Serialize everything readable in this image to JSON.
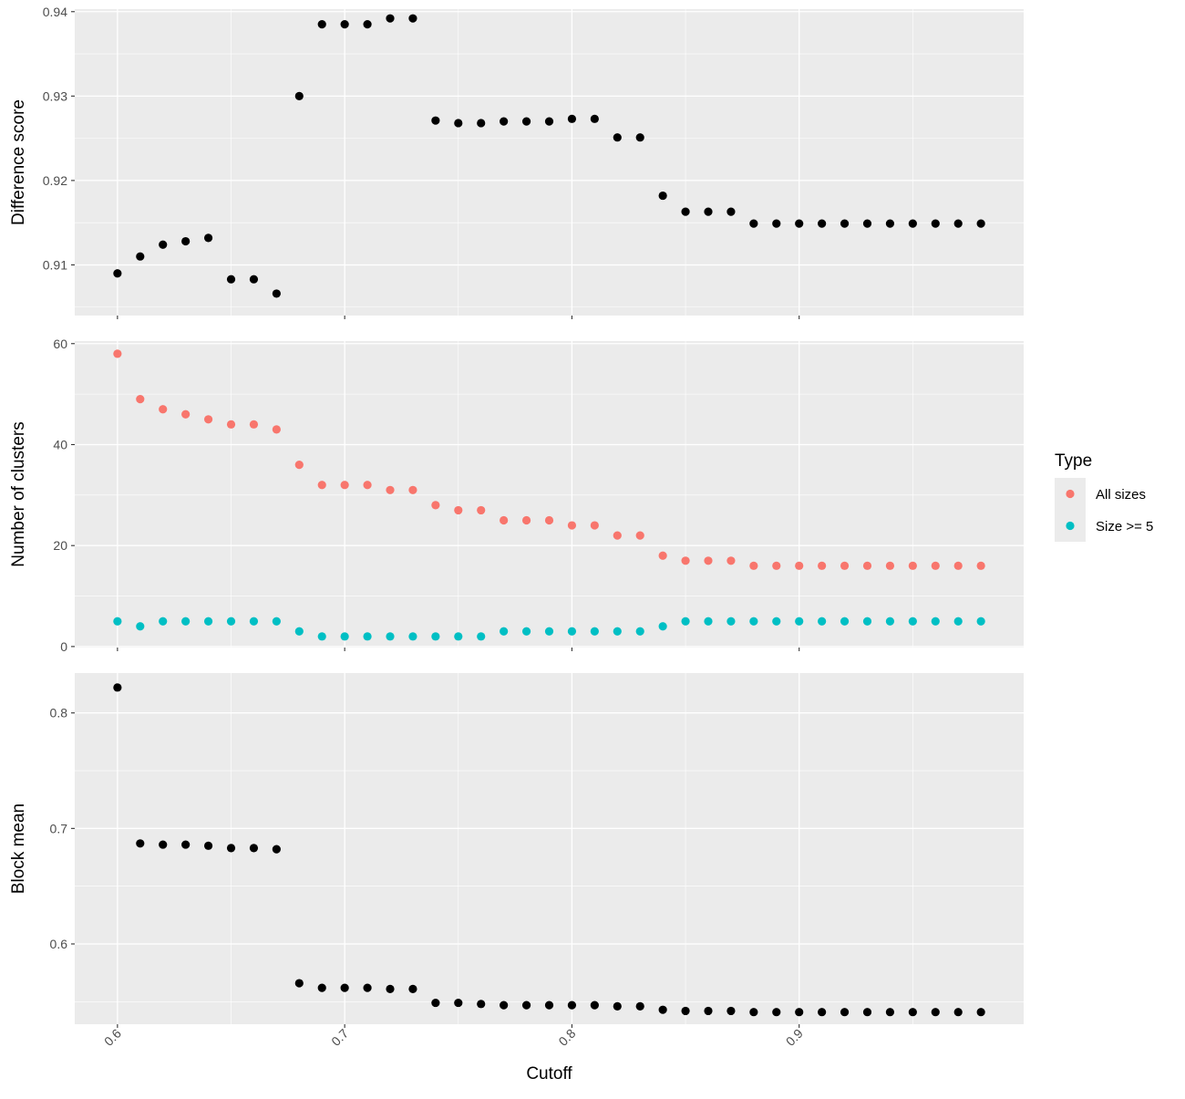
{
  "chart_data": [
    {
      "type": "scatter",
      "panel": "top",
      "ylabel": "Difference score",
      "ylim": [
        0.904,
        0.9403
      ],
      "yticks": [
        0.91,
        0.92,
        0.93,
        0.94
      ],
      "yticklabels": [
        "0.91",
        "0.92",
        "0.93",
        "0.94"
      ],
      "series": [
        {
          "color": "#000000",
          "x": [
            0.6,
            0.61,
            0.62,
            0.63,
            0.64,
            0.65,
            0.66,
            0.67,
            0.68,
            0.69,
            0.7,
            0.71,
            0.72,
            0.73,
            0.74,
            0.75,
            0.76,
            0.77,
            0.78,
            0.79,
            0.8,
            0.81,
            0.82,
            0.83,
            0.84,
            0.85,
            0.86,
            0.87,
            0.88,
            0.89,
            0.9,
            0.91,
            0.92,
            0.93,
            0.94,
            0.95,
            0.96,
            0.97,
            0.98
          ],
          "y": [
            0.909,
            0.911,
            0.9124,
            0.9128,
            0.9132,
            0.9083,
            0.9083,
            0.9066,
            0.93,
            0.9385,
            0.9385,
            0.9385,
            0.9392,
            0.9392,
            0.9271,
            0.9268,
            0.9268,
            0.927,
            0.927,
            0.927,
            0.9273,
            0.9273,
            0.9251,
            0.9251,
            0.9182,
            0.9163,
            0.9163,
            0.9163,
            0.9149,
            0.9149,
            0.9149,
            0.9149,
            0.9149,
            0.9149,
            0.9149,
            0.9149,
            0.9149,
            0.9149,
            0.9149
          ]
        }
      ]
    },
    {
      "type": "scatter",
      "panel": "middle",
      "ylabel": "Number of clusters",
      "ylim": [
        -0.2,
        60.5
      ],
      "yticks": [
        0,
        20,
        40,
        60
      ],
      "yticklabels": [
        "0",
        "20",
        "40",
        "60"
      ],
      "legend": {
        "title": "Type",
        "placement": "right"
      },
      "series": [
        {
          "name": "All sizes",
          "color": "#F8766D",
          "x": [
            0.6,
            0.61,
            0.62,
            0.63,
            0.64,
            0.65,
            0.66,
            0.67,
            0.68,
            0.69,
            0.7,
            0.71,
            0.72,
            0.73,
            0.74,
            0.75,
            0.76,
            0.77,
            0.78,
            0.79,
            0.8,
            0.81,
            0.82,
            0.83,
            0.84,
            0.85,
            0.86,
            0.87,
            0.88,
            0.89,
            0.9,
            0.91,
            0.92,
            0.93,
            0.94,
            0.95,
            0.96,
            0.97,
            0.98
          ],
          "y": [
            58,
            49,
            47,
            46,
            45,
            44,
            44,
            43,
            36,
            32,
            32,
            32,
            31,
            31,
            28,
            27,
            27,
            25,
            25,
            25,
            24,
            24,
            22,
            22,
            18,
            17,
            17,
            17,
            16,
            16,
            16,
            16,
            16,
            16,
            16,
            16,
            16,
            16,
            16
          ]
        },
        {
          "name": "Size >= 5",
          "color": "#00BFC4",
          "x": [
            0.6,
            0.61,
            0.62,
            0.63,
            0.64,
            0.65,
            0.66,
            0.67,
            0.68,
            0.69,
            0.7,
            0.71,
            0.72,
            0.73,
            0.74,
            0.75,
            0.76,
            0.77,
            0.78,
            0.79,
            0.8,
            0.81,
            0.82,
            0.83,
            0.84,
            0.85,
            0.86,
            0.87,
            0.88,
            0.89,
            0.9,
            0.91,
            0.92,
            0.93,
            0.94,
            0.95,
            0.96,
            0.97,
            0.98
          ],
          "y": [
            5,
            4,
            5,
            5,
            5,
            5,
            5,
            5,
            3,
            2,
            2,
            2,
            2,
            2,
            2,
            2,
            2,
            3,
            3,
            3,
            3,
            3,
            3,
            3,
            4,
            5,
            5,
            5,
            5,
            5,
            5,
            5,
            5,
            5,
            5,
            5,
            5,
            5,
            5
          ]
        }
      ]
    },
    {
      "type": "scatter",
      "panel": "bottom",
      "ylabel": "Block mean",
      "ylim": [
        0.5305,
        0.8345
      ],
      "yticks": [
        0.6,
        0.7,
        0.8
      ],
      "yticklabels": [
        "0.6",
        "0.7",
        "0.8"
      ],
      "series": [
        {
          "color": "#000000",
          "x": [
            0.6,
            0.61,
            0.62,
            0.63,
            0.64,
            0.65,
            0.66,
            0.67,
            0.68,
            0.69,
            0.7,
            0.71,
            0.72,
            0.73,
            0.74,
            0.75,
            0.76,
            0.77,
            0.78,
            0.79,
            0.8,
            0.81,
            0.82,
            0.83,
            0.84,
            0.85,
            0.86,
            0.87,
            0.88,
            0.89,
            0.9,
            0.91,
            0.92,
            0.93,
            0.94,
            0.95,
            0.96,
            0.97,
            0.98
          ],
          "y": [
            0.822,
            0.687,
            0.686,
            0.686,
            0.685,
            0.683,
            0.683,
            0.682,
            0.566,
            0.562,
            0.562,
            0.562,
            0.561,
            0.561,
            0.549,
            0.549,
            0.548,
            0.547,
            0.547,
            0.547,
            0.547,
            0.547,
            0.546,
            0.546,
            0.543,
            0.542,
            0.542,
            0.542,
            0.541,
            0.541,
            0.541,
            0.541,
            0.541,
            0.541,
            0.541,
            0.541,
            0.541,
            0.541,
            0.541
          ]
        }
      ]
    }
  ],
  "x_axis": {
    "label": "Cutoff",
    "xlim": [
      0.5812,
      0.9988
    ],
    "ticks": [
      0.6,
      0.7,
      0.8,
      0.9
    ],
    "ticklabels": [
      "0.6",
      "0.7",
      "0.8",
      "0.9"
    ],
    "minor": [
      0.65,
      0.75,
      0.85,
      0.95
    ]
  },
  "style": {
    "panel_bg": "#EBEBEB",
    "grid_color": "#FFFFFF",
    "text_color": "#4D4D4D",
    "title_color": "#000000"
  }
}
